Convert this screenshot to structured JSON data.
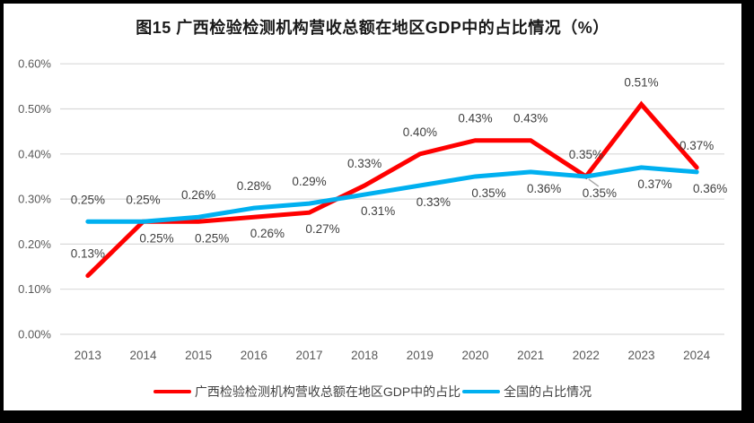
{
  "chart_data": {
    "type": "line",
    "title": "图15 广西检验检测机构营收总额在地区GDP中的占比情况（%）",
    "categories": [
      "2013",
      "2014",
      "2015",
      "2016",
      "2017",
      "2018",
      "2019",
      "2020",
      "2021",
      "2022",
      "2023",
      "2024"
    ],
    "series": [
      {
        "name": "广西检验检测机构营收总额在地区GDP中的占比",
        "color": "#FF0000",
        "values": [
          0.13,
          0.25,
          0.25,
          0.26,
          0.27,
          0.33,
          0.4,
          0.43,
          0.43,
          0.35,
          0.51,
          0.37
        ],
        "labels": [
          "0.13%",
          "0.25%",
          "0.25%",
          "0.26%",
          "0.27%",
          "0.33%",
          "0.40%",
          "0.43%",
          "0.43%",
          "0.35%",
          "0.51%",
          "0.37%"
        ],
        "label_pos": [
          "above",
          "below",
          "below",
          "below",
          "below",
          "above",
          "above",
          "above",
          "above",
          "below-leader",
          "above",
          "above"
        ]
      },
      {
        "name": "全国的占比情况",
        "color": "#00B0F0",
        "values": [
          0.25,
          0.25,
          0.26,
          0.28,
          0.29,
          0.31,
          0.33,
          0.35,
          0.36,
          0.35,
          0.37,
          0.36
        ],
        "labels": [
          "0.25%",
          "0.25%",
          "0.26%",
          "0.28%",
          "0.29%",
          "0.31%",
          "0.33%",
          "0.35%",
          "0.36%",
          "0.35%",
          "0.37%",
          "0.36%"
        ],
        "label_pos": [
          "above",
          "above",
          "above",
          "above",
          "above",
          "below",
          "below",
          "below",
          "below",
          "above",
          "below",
          "below"
        ]
      }
    ],
    "y_axis": {
      "ticks": [
        "0.00%",
        "0.10%",
        "0.20%",
        "0.30%",
        "0.40%",
        "0.50%",
        "0.60%"
      ],
      "min": 0,
      "max": 0.6,
      "step": 0.1
    },
    "unit": "%",
    "grid": "horizontal-only",
    "legend_position": "bottom",
    "colors": {
      "gridline": "#D9D9D9",
      "axis_text": "#595959",
      "data_label_text": "#404040",
      "leader_line": "#A6A6A6",
      "frame": "#000000",
      "background": "#FFFFFF"
    }
  }
}
